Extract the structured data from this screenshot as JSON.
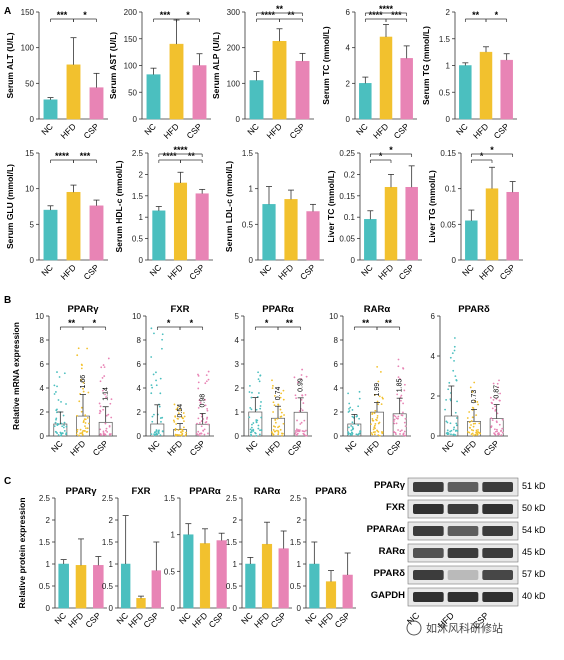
{
  "colors": {
    "NC": "#4bbfbf",
    "HFD": "#f2c12e",
    "CSP": "#e884b5",
    "axis": "#333333"
  },
  "panel_labels": {
    "A": "A",
    "B": "B",
    "C": "C"
  },
  "chart_data": [
    {
      "id": "alt",
      "type": "bar",
      "panel": "A",
      "ylabel": "Serum ALT (U/L)",
      "categories": [
        "NC",
        "HFD",
        "CSP"
      ],
      "values": [
        27,
        76,
        44
      ],
      "errors": [
        3,
        38,
        20
      ],
      "ylim": [
        0,
        150
      ],
      "yticks": [
        0,
        50,
        100,
        150
      ],
      "sig": [
        {
          "a": 0,
          "b": 1,
          "text": "***"
        },
        {
          "a": 1,
          "b": 2,
          "text": "*"
        }
      ]
    },
    {
      "id": "ast",
      "type": "bar",
      "panel": "A",
      "ylabel": "Serum AST (U/L)",
      "categories": [
        "NC",
        "HFD",
        "CSP"
      ],
      "values": [
        83,
        140,
        100
      ],
      "errors": [
        12,
        45,
        22
      ],
      "ylim": [
        0,
        200
      ],
      "yticks": [
        0,
        50,
        100,
        150,
        200
      ],
      "sig": [
        {
          "a": 0,
          "b": 1,
          "text": "***"
        },
        {
          "a": 1,
          "b": 2,
          "text": "*"
        }
      ]
    },
    {
      "id": "alp",
      "type": "bar",
      "panel": "A",
      "ylabel": "Serum ALP (U/L)",
      "categories": [
        "NC",
        "HFD",
        "CSP"
      ],
      "values": [
        108,
        218,
        162
      ],
      "errors": [
        25,
        35,
        22
      ],
      "ylim": [
        0,
        300
      ],
      "yticks": [
        0,
        100,
        200,
        300
      ],
      "sig": [
        {
          "a": 0,
          "b": 1,
          "text": "****"
        },
        {
          "a": 1,
          "b": 2,
          "text": "**"
        },
        {
          "a": 0,
          "b": 2,
          "text": "**"
        }
      ]
    },
    {
      "id": "tc",
      "type": "bar",
      "panel": "A",
      "ylabel": "Serum TC (mmol/L)",
      "categories": [
        "NC",
        "HFD",
        "CSP"
      ],
      "values": [
        2.0,
        4.6,
        3.4
      ],
      "errors": [
        0.35,
        0.7,
        0.7
      ],
      "ylim": [
        0,
        6
      ],
      "yticks": [
        0,
        2,
        4,
        6
      ],
      "sig": [
        {
          "a": 0,
          "b": 1,
          "text": "****"
        },
        {
          "a": 1,
          "b": 2,
          "text": "***"
        },
        {
          "a": 0,
          "b": 2,
          "text": "****"
        }
      ]
    },
    {
      "id": "tg",
      "type": "bar",
      "panel": "A",
      "ylabel": "Serum TG (mmol/L)",
      "categories": [
        "NC",
        "HFD",
        "CSP"
      ],
      "values": [
        1.0,
        1.25,
        1.1
      ],
      "errors": [
        0.05,
        0.1,
        0.12
      ],
      "ylim": [
        0,
        2
      ],
      "yticks": [
        0,
        0.5,
        1.0,
        1.5,
        2.0
      ],
      "sig": [
        {
          "a": 0,
          "b": 1,
          "text": "**"
        },
        {
          "a": 1,
          "b": 2,
          "text": "*"
        }
      ]
    },
    {
      "id": "glu",
      "type": "bar",
      "panel": "A",
      "ylabel": "Serum GLU (mmol/L)",
      "categories": [
        "NC",
        "HFD",
        "CSP"
      ],
      "values": [
        7.0,
        9.5,
        7.6
      ],
      "errors": [
        0.6,
        1.0,
        0.8
      ],
      "ylim": [
        0,
        15
      ],
      "yticks": [
        0,
        5,
        10,
        15
      ],
      "sig": [
        {
          "a": 0,
          "b": 1,
          "text": "****"
        },
        {
          "a": 1,
          "b": 2,
          "text": "***"
        }
      ]
    },
    {
      "id": "hdl",
      "type": "bar",
      "panel": "A",
      "ylabel": "Serum HDL-c (mmol/L)",
      "categories": [
        "NC",
        "HFD",
        "CSP"
      ],
      "values": [
        1.15,
        1.8,
        1.55
      ],
      "errors": [
        0.1,
        0.25,
        0.1
      ],
      "ylim": [
        0,
        2.5
      ],
      "yticks": [
        0,
        0.5,
        1.0,
        1.5,
        2.0,
        2.5
      ],
      "sig": [
        {
          "a": 0,
          "b": 1,
          "text": "****"
        },
        {
          "a": 1,
          "b": 2,
          "text": "**"
        },
        {
          "a": 0,
          "b": 2,
          "text": "****"
        }
      ]
    },
    {
      "id": "ldl",
      "type": "bar",
      "panel": "A",
      "ylabel": "Serum LDL-c (mmol/L)",
      "categories": [
        "NC",
        "HFD",
        "CSP"
      ],
      "values": [
        0.78,
        0.85,
        0.68
      ],
      "errors": [
        0.25,
        0.13,
        0.1
      ],
      "ylim": [
        0,
        1.5
      ],
      "yticks": [
        0,
        0.5,
        1.0,
        1.5
      ],
      "sig": []
    },
    {
      "id": "ltc",
      "type": "bar",
      "panel": "A",
      "ylabel": "Liver TC (mmol/L)",
      "categories": [
        "NC",
        "HFD",
        "CSP"
      ],
      "values": [
        0.095,
        0.17,
        0.17
      ],
      "errors": [
        0.02,
        0.03,
        0.05
      ],
      "ylim": [
        0,
        0.25
      ],
      "yticks": [
        0,
        0.05,
        0.1,
        0.15,
        0.2,
        0.25
      ],
      "sig": [
        {
          "a": 0,
          "b": 1,
          "text": "*"
        },
        {
          "a": 0,
          "b": 2,
          "text": "*"
        }
      ]
    },
    {
      "id": "ltg",
      "type": "bar",
      "panel": "A",
      "ylabel": "Liver TG (mmol/L)",
      "categories": [
        "NC",
        "HFD",
        "CSP"
      ],
      "values": [
        0.055,
        0.1,
        0.095
      ],
      "errors": [
        0.015,
        0.03,
        0.015
      ],
      "ylim": [
        0,
        0.15
      ],
      "yticks": [
        0,
        0.05,
        0.1,
        0.15
      ],
      "sig": [
        {
          "a": 0,
          "b": 1,
          "text": "*"
        },
        {
          "a": 0,
          "b": 2,
          "text": "*"
        }
      ]
    },
    {
      "id": "b_pparg",
      "type": "bar",
      "panel": "B",
      "title": "PPARγ",
      "ylabel": "Relative mRNA expression",
      "categories": [
        "NC",
        "HFD",
        "CSP"
      ],
      "values": [
        1.0,
        1.66,
        1.14
      ],
      "value_labels": [
        "",
        "1.66",
        "1.14"
      ],
      "errors": [
        1.0,
        1.8,
        1.3
      ],
      "ylim": [
        0,
        10
      ],
      "yticks": [
        0,
        2,
        4,
        6,
        8,
        10
      ],
      "dots": true,
      "dot_max": [
        6,
        8,
        7
      ],
      "sig": [
        {
          "a": 0,
          "b": 1,
          "text": "**"
        },
        {
          "a": 1,
          "b": 2,
          "text": "*"
        }
      ]
    },
    {
      "id": "b_fxr",
      "type": "bar",
      "panel": "B",
      "title": "FXR",
      "categories": [
        "NC",
        "HFD",
        "CSP"
      ],
      "values": [
        1.0,
        0.54,
        0.98
      ],
      "value_labels": [
        "",
        "0.54",
        "0.98"
      ],
      "errors": [
        1.6,
        0.5,
        0.9
      ],
      "ylim": [
        0,
        10
      ],
      "yticks": [
        0,
        2,
        4,
        6,
        8,
        10
      ],
      "dots": true,
      "dot_max": [
        10,
        3,
        6
      ],
      "sig": [
        {
          "a": 0,
          "b": 1,
          "text": "*"
        },
        {
          "a": 1,
          "b": 2,
          "text": "*"
        }
      ]
    },
    {
      "id": "b_ppara",
      "type": "bar",
      "panel": "B",
      "title": "PPARα",
      "categories": [
        "NC",
        "HFD",
        "CSP"
      ],
      "values": [
        1.0,
        0.74,
        0.99
      ],
      "value_labels": [
        "",
        "0.74",
        "0.99"
      ],
      "errors": [
        0.6,
        0.5,
        0.6
      ],
      "ylim": [
        0,
        5
      ],
      "yticks": [
        0,
        1,
        2,
        3,
        4,
        5
      ],
      "dots": true,
      "dot_max": [
        3,
        2.6,
        3
      ],
      "sig": [
        {
          "a": 0,
          "b": 1,
          "text": "*"
        },
        {
          "a": 1,
          "b": 2,
          "text": "**"
        }
      ]
    },
    {
      "id": "b_rara",
      "type": "bar",
      "panel": "B",
      "title": "RARα",
      "categories": [
        "NC",
        "HFD",
        "CSP"
      ],
      "values": [
        1.0,
        1.99,
        1.85
      ],
      "value_labels": [
        "",
        "1.99",
        "1.85"
      ],
      "errors": [
        0.8,
        0.8,
        1.3
      ],
      "ylim": [
        0,
        10
      ],
      "yticks": [
        0,
        2,
        4,
        6,
        8,
        10
      ],
      "dots": true,
      "dot_max": [
        4,
        6,
        7
      ],
      "sig": [
        {
          "a": 0,
          "b": 1,
          "text": "**"
        },
        {
          "a": 1,
          "b": 2,
          "text": "**"
        }
      ]
    },
    {
      "id": "b_ppard",
      "type": "bar",
      "panel": "B",
      "title": "PPARδ",
      "categories": [
        "NC",
        "HFD",
        "CSP"
      ],
      "values": [
        1.0,
        0.73,
        0.87
      ],
      "value_labels": [
        "",
        "0.73",
        "0.87"
      ],
      "errors": [
        1.5,
        0.6,
        0.7
      ],
      "ylim": [
        0,
        6
      ],
      "yticks": [
        0,
        2,
        4,
        6
      ],
      "dots": true,
      "dot_max": [
        5.5,
        3,
        3
      ],
      "sig": []
    },
    {
      "id": "c_pparg",
      "type": "bar",
      "panel": "C",
      "title": "PPARγ",
      "ylabel": "Relative protein expression",
      "categories": [
        "NC",
        "HFD",
        "CSP"
      ],
      "values": [
        1.0,
        0.97,
        0.97
      ],
      "errors": [
        0.1,
        0.6,
        0.2
      ],
      "ylim": [
        0,
        2.5
      ],
      "yticks": [
        0,
        0.5,
        1.0,
        1.5,
        2.0,
        2.5
      ],
      "sig": []
    },
    {
      "id": "c_fxr",
      "type": "bar",
      "panel": "C",
      "title": "FXR",
      "categories": [
        "NC",
        "HFD",
        "CSP"
      ],
      "values": [
        1.0,
        0.22,
        0.85
      ],
      "errors": [
        1.1,
        0.05,
        0.65
      ],
      "ylim": [
        0,
        2.5
      ],
      "yticks": [
        0,
        0.5,
        1.0,
        1.5,
        2.0,
        2.5
      ],
      "sig": []
    },
    {
      "id": "c_ppara",
      "type": "bar",
      "panel": "C",
      "title": "PPARα",
      "categories": [
        "NC",
        "HFD",
        "CSP"
      ],
      "values": [
        1.0,
        0.88,
        0.92
      ],
      "errors": [
        0.15,
        0.2,
        0.1
      ],
      "ylim": [
        0,
        1.5
      ],
      "yticks": [
        0,
        0.5,
        1.0,
        1.5
      ],
      "sig": []
    },
    {
      "id": "c_rara",
      "type": "bar",
      "panel": "C",
      "title": "RARα",
      "categories": [
        "NC",
        "HFD",
        "CSP"
      ],
      "values": [
        1.0,
        1.45,
        1.35
      ],
      "errors": [
        0.15,
        0.5,
        0.4
      ],
      "ylim": [
        0,
        2.5
      ],
      "yticks": [
        0,
        0.5,
        1.0,
        1.5,
        2.0,
        2.5
      ],
      "sig": []
    },
    {
      "id": "c_ppard",
      "type": "bar",
      "panel": "C",
      "title": "PPARδ",
      "categories": [
        "NC",
        "HFD",
        "CSP"
      ],
      "values": [
        1.0,
        0.6,
        0.75
      ],
      "errors": [
        0.5,
        0.25,
        0.5
      ],
      "ylim": [
        0,
        2.5
      ],
      "yticks": [
        0,
        0.5,
        1.0,
        1.5,
        2.0,
        2.5
      ],
      "sig": []
    }
  ],
  "western_blot": {
    "rows": [
      {
        "protein": "PPARγ",
        "size": "51 kD",
        "intensity": [
          0.85,
          0.7,
          0.85
        ]
      },
      {
        "protein": "FXR",
        "size": "50 kD",
        "intensity": [
          0.9,
          0.85,
          0.9
        ]
      },
      {
        "protein": "PPARAα",
        "size": "54 kD",
        "intensity": [
          0.85,
          0.7,
          0.85
        ]
      },
      {
        "protein": "RARα",
        "size": "45 kD",
        "intensity": [
          0.75,
          0.85,
          0.85
        ]
      },
      {
        "protein": "PPARδ",
        "size": "57 kD",
        "intensity": [
          0.85,
          0.3,
          0.8
        ]
      },
      {
        "protein": "GAPDH",
        "size": "40 kD",
        "intensity": [
          0.9,
          0.9,
          0.9
        ]
      }
    ],
    "lanes": [
      "NC",
      "HFD",
      "CSP"
    ]
  },
  "watermark": "如沐风科研修站"
}
